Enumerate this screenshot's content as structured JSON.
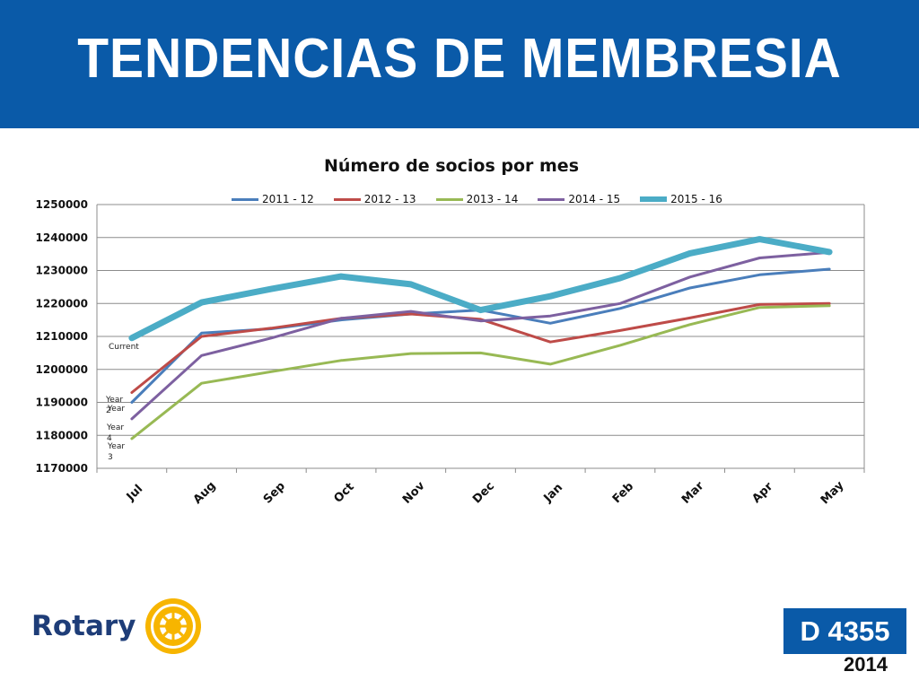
{
  "slide": {
    "title": "TENDENCIAS DE MEMBRESIA",
    "logo_text": "Rotary",
    "district": "D 4355",
    "year": "2014"
  },
  "chart_data": {
    "type": "line",
    "title": "Número de socios por mes",
    "xlabel": "",
    "ylabel": "",
    "categories": [
      "Jul",
      "Aug",
      "Sep",
      "Oct",
      "Nov",
      "Dec",
      "Jan",
      "Feb",
      "Mar",
      "Apr",
      "May"
    ],
    "y_ticks": [
      "1170000",
      "1180000",
      "1190000",
      "1200000",
      "1210000",
      "1220000",
      "1230000",
      "1240000",
      "1250000"
    ],
    "ylim": [
      1170000,
      1250000
    ],
    "grid": "horizontal",
    "legend_position": "top",
    "series": [
      {
        "name": "2011 - 12",
        "color": "#4a7ebb",
        "values": [
          1190000,
          1211000,
          1212300,
          1215000,
          1216800,
          1218000,
          1214000,
          1218500,
          1224700,
          1228700,
          1230400
        ]
      },
      {
        "name": "2012 - 13",
        "color": "#be4b48",
        "values": [
          1193000,
          1210000,
          1212500,
          1215500,
          1216800,
          1215200,
          1208300,
          1211800,
          1215600,
          1219700,
          1220000
        ]
      },
      {
        "name": "2013 - 14",
        "color": "#98b954",
        "values": [
          1179000,
          1195800,
          1199300,
          1202700,
          1204800,
          1205000,
          1201600,
          1207300,
          1213600,
          1218800,
          1219300
        ]
      },
      {
        "name": "2014 - 15",
        "color": "#7d60a0",
        "values": [
          1185000,
          1204200,
          1209500,
          1215500,
          1217600,
          1214700,
          1216200,
          1220000,
          1228000,
          1233800,
          1235500
        ]
      },
      {
        "name": "2015 - 16",
        "color": "#4bacc6",
        "values": [
          1209500,
          1220300,
          1224400,
          1228200,
          1225800,
          1218000,
          1222200,
          1227700,
          1235200,
          1239500,
          1235600
        ]
      }
    ],
    "annotations": [
      "Current",
      "Year 2",
      "Year 1",
      "Year 4",
      "Year 3"
    ]
  }
}
